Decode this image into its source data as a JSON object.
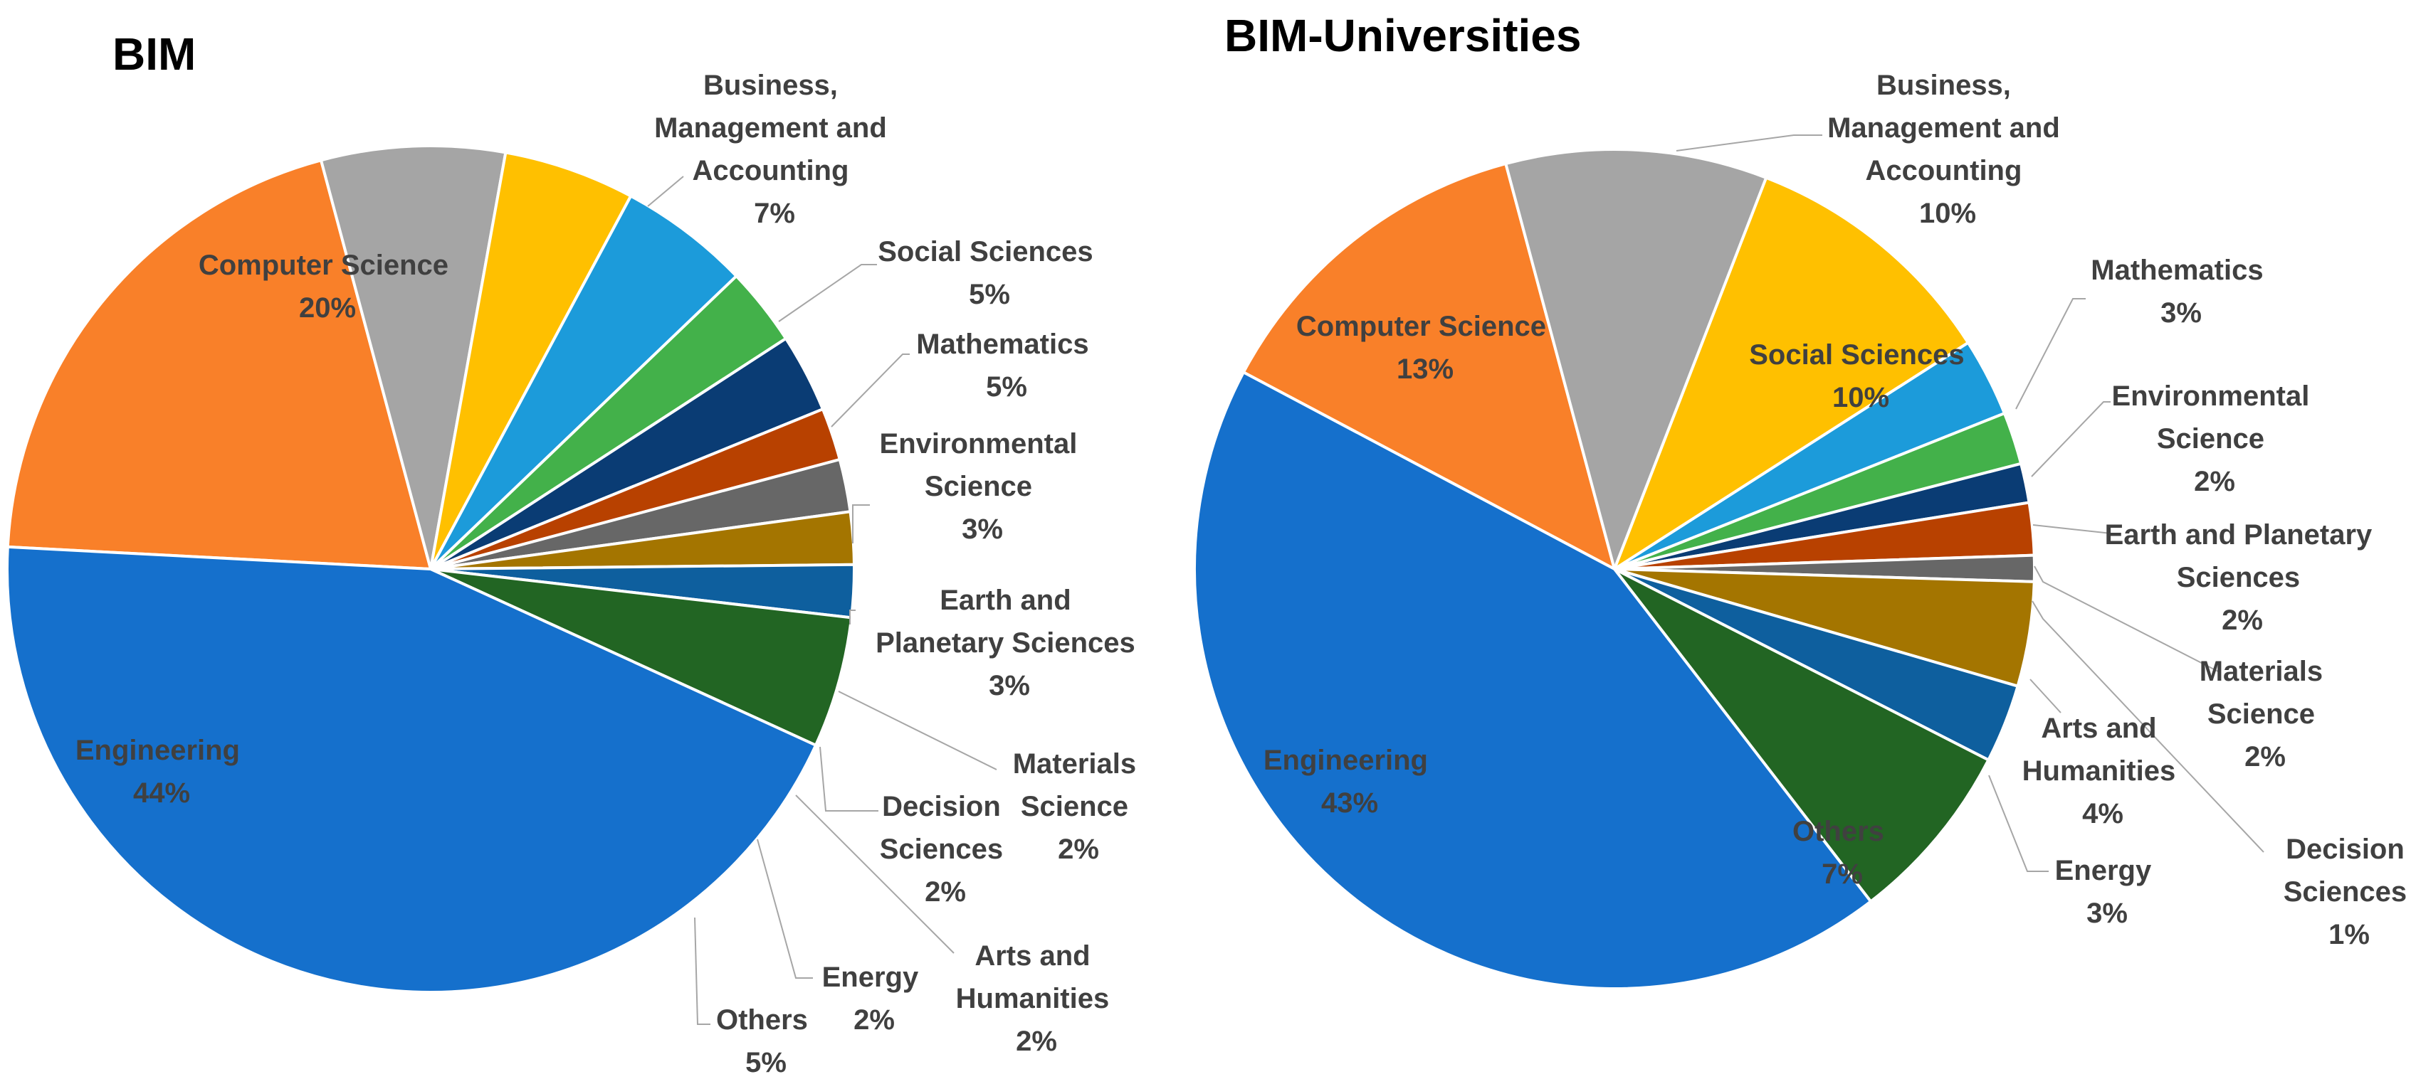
{
  "chart_data": [
    {
      "type": "pie",
      "title": "BIM",
      "series": [
        {
          "name": "Engineering",
          "value": 44,
          "label": "44%",
          "color": "#1570CC"
        },
        {
          "name": "Computer Science",
          "value": 20,
          "label": "20%",
          "color": "#F98029"
        },
        {
          "name": "Business, Management and Accounting",
          "value": 7,
          "label": "7%",
          "color": "#A5A5A5"
        },
        {
          "name": "Social Sciences",
          "value": 5,
          "label": "5%",
          "color": "#FFC000"
        },
        {
          "name": "Mathematics",
          "value": 5,
          "label": "5%",
          "color": "#1C9BDA"
        },
        {
          "name": "Environmental Science",
          "value": 3,
          "label": "3%",
          "color": "#43B14A"
        },
        {
          "name": "Earth and Planetary Sciences",
          "value": 3,
          "label": "3%",
          "color": "#0A3C74"
        },
        {
          "name": "Materials Science",
          "value": 2,
          "label": "2%",
          "color": "#B84100"
        },
        {
          "name": "Decision Sciences",
          "value": 2,
          "label": "2%",
          "color": "#676767"
        },
        {
          "name": "Arts and Humanities",
          "value": 2,
          "label": "2%",
          "color": "#A47500"
        },
        {
          "name": "Energy",
          "value": 2,
          "label": "2%",
          "color": "#0E5F9E"
        },
        {
          "name": "Others",
          "value": 5,
          "label": "5%",
          "color": "#226523"
        }
      ]
    },
    {
      "type": "pie",
      "title": "BIM-Universities",
      "series": [
        {
          "name": "Engineering",
          "value": 43,
          "label": "43%",
          "color": "#1570CC"
        },
        {
          "name": "Computer Science",
          "value": 13,
          "label": "13%",
          "color": "#F98029"
        },
        {
          "name": "Business, Management and Accounting",
          "value": 10,
          "label": "10%",
          "color": "#A5A5A5"
        },
        {
          "name": "Social Sciences",
          "value": 10,
          "label": "10%",
          "color": "#FFC000"
        },
        {
          "name": "Mathematics",
          "value": 3,
          "label": "3%",
          "color": "#1C9BDA"
        },
        {
          "name": "Environmental Science",
          "value": 2,
          "label": "2%",
          "color": "#43B14A"
        },
        {
          "name": "Earth and Planetary Sciences",
          "value": 1.5,
          "label": "2%",
          "color": "#0A3C74"
        },
        {
          "name": "Materials Science",
          "value": 2,
          "label": "2%",
          "color": "#B84100"
        },
        {
          "name": "Decision Sciences",
          "value": 1,
          "label": "1%",
          "color": "#676767"
        },
        {
          "name": "Arts and Humanities",
          "value": 4,
          "label": "4%",
          "color": "#A47500"
        },
        {
          "name": "Energy",
          "value": 3,
          "label": "3%",
          "color": "#0E5F9E"
        },
        {
          "name": "Others",
          "value": 7,
          "label": "7%",
          "color": "#226523"
        }
      ]
    }
  ]
}
